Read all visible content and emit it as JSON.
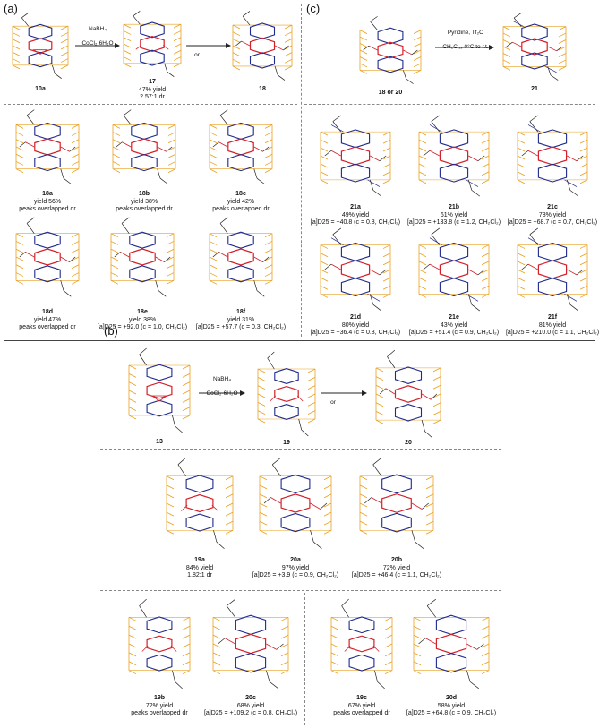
{
  "panels": {
    "a": "(a)",
    "b": "(b)",
    "c": "(c)"
  },
  "colors": {
    "pillar": "#E8A020",
    "ring_blue": "#1E2A8C",
    "ring_red": "#D4202A",
    "ring_black": "#222222"
  },
  "scheme_a": {
    "start": {
      "id": "10a"
    },
    "reagent1": {
      "line1": "NaBH₄",
      "line2": "CoCl₂·6H₂O"
    },
    "intermediate": {
      "id": "17",
      "line1": "47% yield",
      "line2": "2.57:1 dr"
    },
    "reagent2": {
      "or": "or"
    },
    "product": {
      "id": "18"
    },
    "compounds": [
      {
        "id": "18a",
        "line1": "yield 56%",
        "line2": "peaks overlapped dr"
      },
      {
        "id": "18b",
        "line1": "yield 38%",
        "line2": "peaks overlapped dr"
      },
      {
        "id": "18c",
        "line1": "yield 42%",
        "line2": "peaks overlapped dr"
      },
      {
        "id": "18d",
        "line1": "yield 47%",
        "line2": "peaks overlapped dr"
      },
      {
        "id": "18e",
        "line1": "yield 38%",
        "line2": "[a]D25 = +92.0 (c = 1.0, CH₂Cl₂)"
      },
      {
        "id": "18f",
        "line1": "yield 31%",
        "line2": "[a]D25 = +57.7 (c = 0.3, CH₂Cl₂)"
      }
    ]
  },
  "scheme_c": {
    "start": {
      "id": "18 or 20"
    },
    "reagent": {
      "line1": "Pyridine, Tf₂O",
      "line2": "CH₂Cl₂, 0°C to r.t."
    },
    "product": {
      "id": "21"
    },
    "compounds": [
      {
        "id": "21a",
        "line1": "49% yield",
        "line2": "[a]D25 = +40.8 (c = 0.8, CH₂Cl₂)"
      },
      {
        "id": "21b",
        "line1": "61% yield",
        "line2": "[a]D25 = +133.8 (c = 1.2, CH₂Cl₂)"
      },
      {
        "id": "21c",
        "line1": "78% yield",
        "line2": "[a]D25 = +68.7 (c = 0.7, CH₂Cl₂)"
      },
      {
        "id": "21d",
        "line1": "80% yield",
        "line2": "[a]D25 = +36.4 (c = 0.3, CH₂Cl₂)"
      },
      {
        "id": "21e",
        "line1": "43% yield",
        "line2": "[a]D25 = +51.4 (c = 0.9, CH₂Cl₂)"
      },
      {
        "id": "21f",
        "line1": "81% yield",
        "line2": "[a]D25 = +210.0 (c = 1.1, CH₂Cl₂)"
      }
    ]
  },
  "scheme_b": {
    "start": {
      "id": "13"
    },
    "reagent1": {
      "line1": "NaBH₄",
      "line2": "CoCl₂·6H₂O"
    },
    "intermediate": {
      "id": "19"
    },
    "reagent2": {
      "or": "or"
    },
    "product": {
      "id": "20"
    },
    "compounds": [
      {
        "id": "19a",
        "line1": "84% yield",
        "line2": "1.82:1 dr"
      },
      {
        "id": "20a",
        "line1": "97% yield",
        "line2": "[a]D25 = +3.9 (c = 0.9, CH₂Cl₂)"
      },
      {
        "id": "20b",
        "line1": "72% yield",
        "line2": "[a]D25 = +46.4 (c = 1.1, CH₂Cl₂)"
      },
      {
        "id": "19b",
        "line1": "72% yield",
        "line2": "peaks overlapped dr"
      },
      {
        "id": "20c",
        "line1": "68% yield",
        "line2": "[a]D25 = +109.2 (c = 0.8, CH₂Cl₂)"
      },
      {
        "id": "19c",
        "line1": "67% yield",
        "line2": "peaks overlapped dr"
      },
      {
        "id": "20d",
        "line1": "58% yield",
        "line2": "[a]D25 = +64.8 (c = 0.9, CH₂Cl₂)"
      }
    ]
  }
}
